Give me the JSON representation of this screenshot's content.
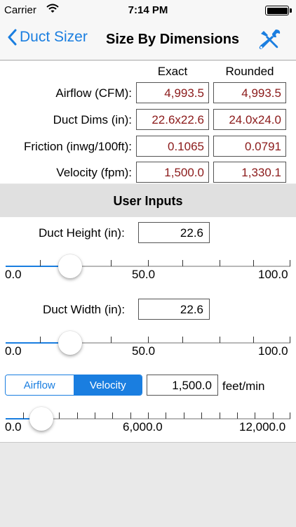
{
  "status": {
    "carrier": "Carrier",
    "time": "7:14 PM"
  },
  "nav": {
    "back_label": "Duct Sizer",
    "title": "Size By Dimensions"
  },
  "results": {
    "col_exact": "Exact",
    "col_rounded": "Rounded",
    "rows": [
      {
        "label": "Airflow (CFM):",
        "exact": "4,993.5",
        "rounded": "4,993.5"
      },
      {
        "label": "Duct Dims (in):",
        "exact": "22.6x22.6",
        "rounded": "24.0x24.0"
      },
      {
        "label": "Friction (inwg/100ft):",
        "exact": "0.1065",
        "rounded": "0.0791"
      },
      {
        "label": "Velocity (fpm):",
        "exact": "1,500.0",
        "rounded": "1,330.1"
      }
    ]
  },
  "user_inputs": {
    "header": "User Inputs",
    "height": {
      "label": "Duct Height (in):",
      "value": "22.6",
      "min_label": "0.0",
      "mid_label": "50.0",
      "max_label": "100.0",
      "fraction": 0.226
    },
    "width": {
      "label": "Duct Width (in):",
      "value": "22.6",
      "min_label": "0.0",
      "mid_label": "50.0",
      "max_label": "100.0",
      "fraction": 0.226
    },
    "mode": {
      "option_airflow": "Airflow",
      "option_velocity": "Velocity",
      "selected": "Velocity"
    },
    "velocity": {
      "value": "1,500.0",
      "unit": "feet/min",
      "min_label": "0.0",
      "mid_label": "6,000.0",
      "max_label": "12,000.0",
      "fraction": 0.125
    }
  },
  "colors": {
    "accent": "#1a7ee0",
    "value_text": "#8b1a1a"
  }
}
